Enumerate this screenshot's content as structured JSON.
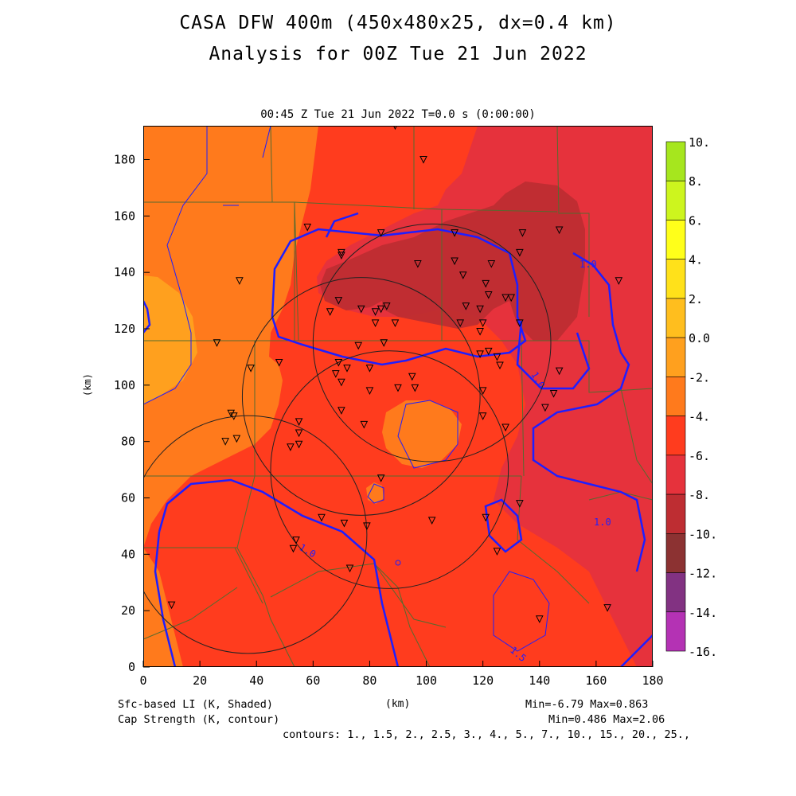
{
  "header": {
    "title_line1": "CASA DFW 400m (450x480x25, dx=0.4 km)",
    "title_line2": "Analysis for 00Z Tue 21 Jun 2022",
    "valid_time": "00:45 Z Tue 21 Jun 2022    T=0.0 s (0:00:00)"
  },
  "axes": {
    "x_label": "(km)",
    "y_label": "(km)",
    "x_ticks": [
      0,
      20,
      40,
      60,
      80,
      100,
      120,
      140,
      160,
      180
    ],
    "y_ticks": [
      0,
      20,
      40,
      60,
      80,
      100,
      120,
      140,
      160,
      180
    ],
    "x_range": [
      0,
      180
    ],
    "y_range": [
      0,
      192
    ]
  },
  "colorbar": {
    "labels": [
      "10.",
      "8.",
      "6.",
      "4.",
      "2.",
      "0.0",
      "-2.",
      "-4.",
      "-6.",
      "-8.",
      "-10.",
      "-12.",
      "-14.",
      "-16."
    ],
    "colors": [
      "#a6e61e",
      "#cdf51e",
      "#ffff1a",
      "#ffe11a",
      "#ffbe1e",
      "#ffa01e",
      "#ff7a1c",
      "#ff3c1e",
      "#e6323c",
      "#be2d32",
      "#8c3232",
      "#823282",
      "#b432b4",
      "#dc3ce6"
    ]
  },
  "footer": {
    "field1": "Sfc-based LI (K, Shaded)",
    "field2": "Cap Strength (K, contour)",
    "minmax1": "Min=-6.79 Max=0.863",
    "minmax2": "Min=0.486 Max=2.06",
    "contours": "contours: 1., 1.5, 2., 2.5, 3., 4., 5., 7., 10., 15., 20., 25.,"
  },
  "contour_labels": {
    "a": "1.0",
    "b": "1.0",
    "c": "1.0",
    "d": "1.0",
    "e": "1.5"
  },
  "radars": [
    {
      "x": 102,
      "y": 115
    },
    {
      "x": 77,
      "y": 96
    },
    {
      "x": 87,
      "y": 70
    },
    {
      "x": 37,
      "y": 47
    }
  ],
  "radar_range_km": 42,
  "stations": [
    [
      89,
      192
    ],
    [
      99,
      180
    ],
    [
      58,
      156
    ],
    [
      84,
      154
    ],
    [
      110,
      154
    ],
    [
      147,
      155
    ],
    [
      134,
      154
    ],
    [
      70,
      147
    ],
    [
      70,
      146
    ],
    [
      97,
      143
    ],
    [
      110,
      144
    ],
    [
      123,
      143
    ],
    [
      133,
      147
    ],
    [
      34,
      137
    ],
    [
      113,
      139
    ],
    [
      121,
      136
    ],
    [
      168,
      137
    ],
    [
      122,
      132
    ],
    [
      130,
      131
    ],
    [
      128,
      131
    ],
    [
      69,
      130
    ],
    [
      114,
      128
    ],
    [
      77,
      127
    ],
    [
      84,
      127
    ],
    [
      86,
      128
    ],
    [
      66,
      126
    ],
    [
      82,
      126
    ],
    [
      119,
      127
    ],
    [
      82,
      122
    ],
    [
      89,
      122
    ],
    [
      112,
      122
    ],
    [
      120,
      122
    ],
    [
      133,
      122
    ],
    [
      119,
      119
    ],
    [
      26,
      115
    ],
    [
      85,
      115
    ],
    [
      76,
      114
    ],
    [
      122,
      112
    ],
    [
      119,
      111
    ],
    [
      125,
      110
    ],
    [
      48,
      108
    ],
    [
      69,
      108
    ],
    [
      72,
      106
    ],
    [
      80,
      106
    ],
    [
      38,
      106
    ],
    [
      126,
      107
    ],
    [
      147,
      105
    ],
    [
      68,
      104
    ],
    [
      95,
      103
    ],
    [
      70,
      101
    ],
    [
      145,
      97
    ],
    [
      96,
      99
    ],
    [
      80,
      98
    ],
    [
      90,
      99
    ],
    [
      120,
      98
    ],
    [
      70,
      91
    ],
    [
      31,
      90
    ],
    [
      32,
      89
    ],
    [
      142,
      92
    ],
    [
      120,
      89
    ],
    [
      55,
      87
    ],
    [
      78,
      86
    ],
    [
      128,
      85
    ],
    [
      55,
      83
    ],
    [
      29,
      80
    ],
    [
      33,
      81
    ],
    [
      55,
      79
    ],
    [
      52,
      78
    ],
    [
      84,
      67
    ],
    [
      63,
      53
    ],
    [
      71,
      51
    ],
    [
      79,
      50
    ],
    [
      133,
      58
    ],
    [
      102,
      52
    ],
    [
      121,
      53
    ],
    [
      54,
      45
    ],
    [
      53,
      42
    ],
    [
      125,
      41
    ],
    [
      73,
      35
    ],
    [
      140,
      17
    ],
    [
      10,
      22
    ],
    [
      164,
      21
    ]
  ]
}
